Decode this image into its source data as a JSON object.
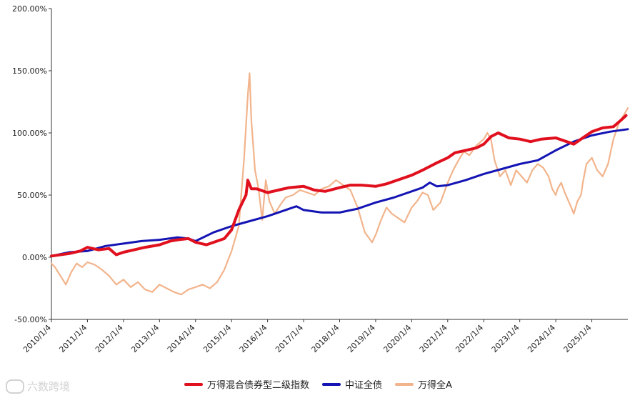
{
  "chart_data": {
    "type": "line",
    "title": "",
    "xlabel": "",
    "ylabel": "",
    "ylim": [
      -50,
      200
    ],
    "y_ticks": [
      "200.00%",
      "150.00%",
      "100.00%",
      "50.00%",
      "0.00%",
      "-50.00%"
    ],
    "y_tick_values": [
      200,
      150,
      100,
      50,
      0,
      -50
    ],
    "x_ticks": [
      "2010/1/4",
      "2011/1/4",
      "2012/1/4",
      "2013/1/4",
      "2014/1/4",
      "2015/1/4",
      "2016/1/4",
      "2017/1/4",
      "2018/1/4",
      "2019/1/4",
      "2020/1/4",
      "2021/1/4",
      "2022/1/4",
      "2023/1/4",
      "2024/1/4",
      "2025/1/4"
    ],
    "x_range": [
      2010.0,
      2026.0
    ],
    "legend_position": "bottom",
    "grid": false,
    "series": [
      {
        "name": "万得混合债券型二级指数",
        "color": "#e0101e",
        "x": [
          2010.0,
          2010.5,
          2010.8,
          2011.0,
          2011.3,
          2011.6,
          2011.8,
          2012.0,
          2012.3,
          2012.6,
          2013.0,
          2013.3,
          2013.5,
          2013.8,
          2014.0,
          2014.3,
          2014.5,
          2014.8,
          2015.0,
          2015.2,
          2015.4,
          2015.45,
          2015.55,
          2015.7,
          2016.0,
          2016.3,
          2016.6,
          2017.0,
          2017.3,
          2017.6,
          2018.0,
          2018.3,
          2018.6,
          2019.0,
          2019.3,
          2019.6,
          2020.0,
          2020.3,
          2020.5,
          2020.7,
          2021.0,
          2021.2,
          2021.5,
          2021.8,
          2022.0,
          2022.2,
          2022.4,
          2022.7,
          2023.0,
          2023.3,
          2023.6,
          2024.0,
          2024.3,
          2024.5,
          2024.7,
          2025.0,
          2025.3,
          2025.6,
          2025.8,
          2025.95
        ],
        "values": [
          1,
          3,
          5,
          8,
          6,
          7,
          2,
          4,
          6,
          8,
          10,
          13,
          14,
          15,
          12,
          10,
          12,
          15,
          22,
          38,
          50,
          62,
          55,
          55,
          52,
          54,
          56,
          57,
          54,
          53,
          56,
          58,
          58,
          57,
          59,
          62,
          66,
          70,
          73,
          76,
          80,
          84,
          86,
          88,
          91,
          97,
          100,
          96,
          95,
          93,
          95,
          96,
          93,
          91,
          95,
          101,
          104,
          105,
          110,
          114
        ]
      },
      {
        "name": "中证全债",
        "color": "#1414b4",
        "x": [
          2010.0,
          2010.5,
          2011.0,
          2011.5,
          2012.0,
          2012.5,
          2013.0,
          2013.5,
          2013.8,
          2014.0,
          2014.5,
          2015.0,
          2015.5,
          2016.0,
          2016.5,
          2016.8,
          2017.0,
          2017.5,
          2018.0,
          2018.5,
          2019.0,
          2019.5,
          2020.0,
          2020.3,
          2020.5,
          2020.7,
          2021.0,
          2021.5,
          2022.0,
          2022.5,
          2023.0,
          2023.5,
          2024.0,
          2024.5,
          2025.0,
          2025.5,
          2026.0
        ],
        "values": [
          1,
          4,
          5,
          9,
          11,
          13,
          14,
          16,
          15,
          13,
          20,
          25,
          29,
          33,
          38,
          41,
          38,
          36,
          36,
          39,
          44,
          48,
          53,
          56,
          60,
          57,
          58,
          62,
          67,
          71,
          75,
          78,
          86,
          93,
          98,
          101,
          103
        ]
      },
      {
        "name": "万得全A",
        "color": "#f2b48c",
        "x": [
          2010.0,
          2010.1,
          2010.25,
          2010.4,
          2010.55,
          2010.7,
          2010.85,
          2011.0,
          2011.2,
          2011.4,
          2011.6,
          2011.8,
          2012.0,
          2012.2,
          2012.4,
          2012.6,
          2012.8,
          2013.0,
          2013.2,
          2013.4,
          2013.6,
          2013.8,
          2014.0,
          2014.2,
          2014.4,
          2014.6,
          2014.8,
          2015.0,
          2015.2,
          2015.35,
          2015.45,
          2015.5,
          2015.55,
          2015.65,
          2015.75,
          2015.85,
          2015.95,
          2016.05,
          2016.2,
          2016.35,
          2016.5,
          2016.7,
          2016.9,
          2017.1,
          2017.3,
          2017.5,
          2017.7,
          2017.9,
          2018.1,
          2018.3,
          2018.5,
          2018.7,
          2018.9,
          2019.0,
          2019.15,
          2019.3,
          2019.45,
          2019.6,
          2019.8,
          2020.0,
          2020.15,
          2020.3,
          2020.45,
          2020.6,
          2020.8,
          2021.0,
          2021.15,
          2021.3,
          2021.45,
          2021.6,
          2021.8,
          2022.0,
          2022.1,
          2022.2,
          2022.3,
          2022.45,
          2022.6,
          2022.75,
          2022.9,
          2023.05,
          2023.2,
          2023.35,
          2023.5,
          2023.65,
          2023.8,
          2023.9,
          2024.0,
          2024.05,
          2024.15,
          2024.25,
          2024.4,
          2024.5,
          2024.6,
          2024.7,
          2024.75,
          2024.85,
          2025.0,
          2025.15,
          2025.3,
          2025.45,
          2025.6,
          2025.75,
          2025.9,
          2026.0
        ],
        "values": [
          -5,
          -8,
          -15,
          -22,
          -12,
          -5,
          -8,
          -4,
          -6,
          -10,
          -15,
          -22,
          -18,
          -24,
          -20,
          -26,
          -28,
          -22,
          -25,
          -28,
          -30,
          -26,
          -24,
          -22,
          -25,
          -20,
          -10,
          5,
          25,
          80,
          130,
          148,
          110,
          70,
          55,
          30,
          62,
          45,
          35,
          42,
          48,
          50,
          54,
          52,
          50,
          55,
          57,
          62,
          58,
          54,
          40,
          20,
          12,
          18,
          30,
          40,
          35,
          32,
          28,
          40,
          45,
          52,
          50,
          38,
          44,
          60,
          70,
          78,
          85,
          82,
          90,
          95,
          100,
          95,
          78,
          65,
          70,
          58,
          70,
          65,
          60,
          70,
          75,
          72,
          65,
          55,
          50,
          55,
          60,
          52,
          42,
          35,
          45,
          50,
          60,
          75,
          80,
          70,
          65,
          75,
          95,
          108,
          115,
          120
        ]
      }
    ]
  },
  "legend": {
    "items": [
      {
        "label": "万得混合债券型二级指数",
        "color": "#e0101e"
      },
      {
        "label": "中证全债",
        "color": "#1414b4"
      },
      {
        "label": "万得全A",
        "color": "#f2b48c"
      }
    ]
  },
  "watermark": {
    "text": "六数跨境"
  }
}
